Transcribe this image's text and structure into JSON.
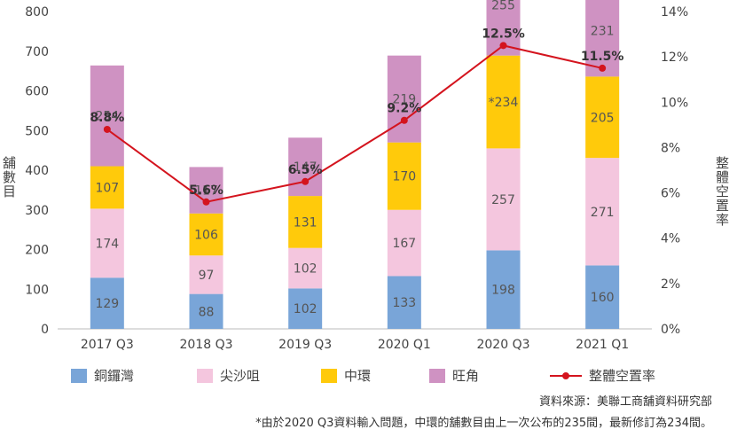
{
  "chart_data": {
    "type": "bar",
    "stacked": true,
    "categories": [
      "2017 Q3",
      "2018 Q3",
      "2019 Q3",
      "2020 Q1",
      "2020 Q3",
      "2021 Q1"
    ],
    "series": [
      {
        "name": "銅鑼灣",
        "color": "#79a5d8",
        "values": [
          129,
          88,
          102,
          133,
          198,
          160
        ]
      },
      {
        "name": "尖沙咀",
        "color": "#f4c6de",
        "values": [
          174,
          97,
          102,
          167,
          257,
          271
        ]
      },
      {
        "name": "中環",
        "color": "#ffca0b",
        "values": [
          107,
          106,
          131,
          170,
          234,
          205
        ]
      },
      {
        "name": "旺角",
        "color": "#cf92c2",
        "values": [
          254,
          117,
          147,
          219,
          255,
          231
        ]
      }
    ],
    "segment_labels": [
      [
        "129",
        "174",
        "107",
        "254"
      ],
      [
        "88",
        "97",
        "106",
        "117"
      ],
      [
        "102",
        "102",
        "131",
        "147"
      ],
      [
        "133",
        "167",
        "170",
        "219"
      ],
      [
        "198",
        "257",
        "*234",
        "255"
      ],
      [
        "160",
        "271",
        "205",
        "231"
      ]
    ],
    "line": {
      "name": "整體空置率",
      "color": "#d4141e",
      "values": [
        8.8,
        5.6,
        6.5,
        9.2,
        12.5,
        11.5
      ],
      "labels": [
        "8.8%",
        "5.6%",
        "6.5%",
        "9.2%",
        "12.5%",
        "11.5%"
      ]
    },
    "ylabel": "舖數目",
    "y2label": "整體空置率",
    "ylim": [
      0,
      800
    ],
    "y2lim": [
      0,
      14
    ],
    "yticks": [
      "0",
      "100",
      "200",
      "300",
      "400",
      "500",
      "600",
      "700",
      "800"
    ],
    "y2ticks": [
      "0%",
      "2%",
      "4%",
      "6%",
      "8%",
      "10%",
      "12%",
      "14%"
    ],
    "grid": false,
    "legend_position": "bottom"
  },
  "source": "資料來源：美聯工商舖資料研究部",
  "note": "*由於2020 Q3資料輸入問題，中環的舖數目由上一次公布的235間，最新修訂為234間。"
}
